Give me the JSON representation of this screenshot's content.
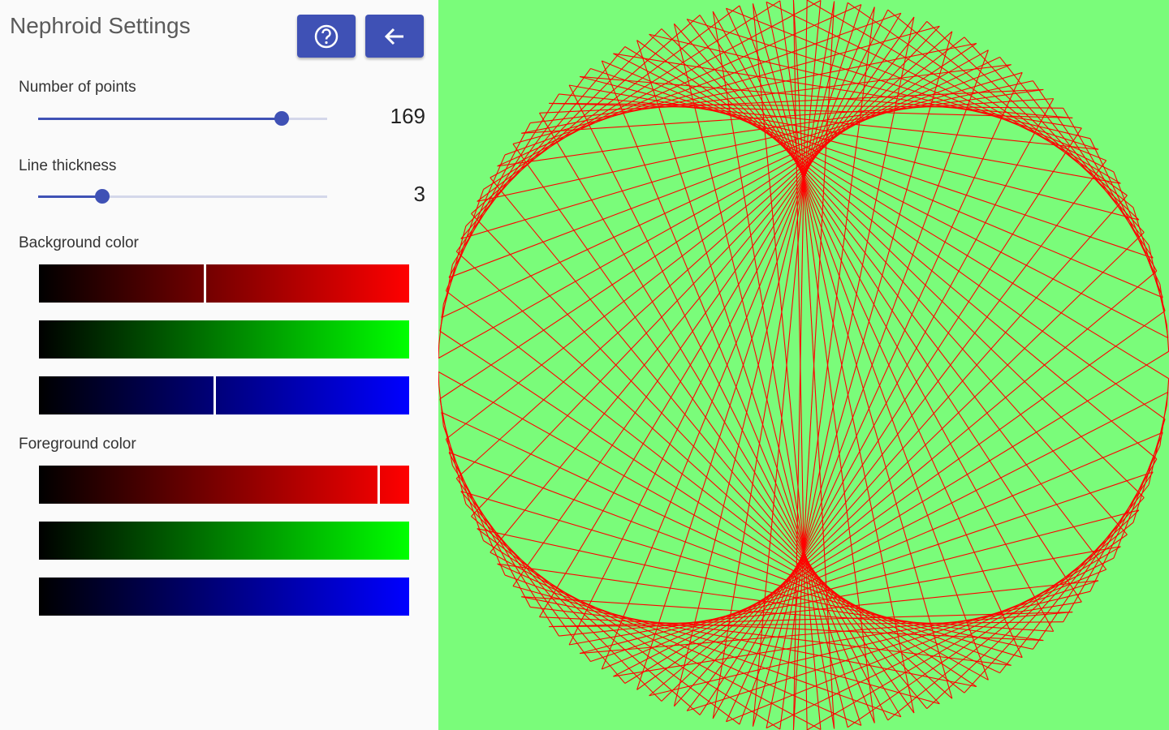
{
  "header": {
    "title": "Nephroid Settings"
  },
  "settings": [
    {
      "label": "Number of points",
      "value": 169
    },
    {
      "label": "Line thickness",
      "value": 3
    }
  ],
  "colors": [
    {
      "label": "Background color"
    },
    {
      "label": "Foreground color"
    }
  ]
}
